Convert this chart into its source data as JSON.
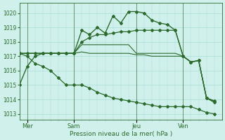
{
  "bg_color": "#cff0eb",
  "grid_color": "#aaddd8",
  "line_color": "#2d6b2d",
  "marker_color": "#2d6b2d",
  "xlabel": "Pression niveau de la mer( hPa )",
  "day_labels": [
    "Mer",
    "Sam",
    "Jeu",
    "Ven"
  ],
  "day_positions": [
    1,
    7,
    15,
    21
  ],
  "ylim": [
    1012.6,
    1020.7
  ],
  "yticks": [
    1013,
    1014,
    1015,
    1016,
    1017,
    1018,
    1019,
    1020
  ],
  "xlim": [
    0,
    26
  ],
  "series": [
    {
      "x": [
        0,
        1,
        2,
        3,
        4,
        5,
        6,
        7,
        8,
        9,
        10,
        11,
        12,
        13,
        14,
        15,
        16,
        17,
        18,
        19,
        20,
        21,
        22,
        23,
        24,
        25
      ],
      "y": [
        1015.0,
        1016.3,
        1017.0,
        1017.2,
        1017.2,
        1017.2,
        1017.2,
        1017.2,
        1018.8,
        1018.5,
        1019.0,
        1018.6,
        1019.8,
        1019.3,
        1020.1,
        1020.1,
        1020.0,
        1019.5,
        1019.3,
        1019.2,
        1018.8,
        1017.0,
        1016.6,
        1016.7,
        1014.1,
        1013.8
      ],
      "marker": true,
      "lw": 1.0
    },
    {
      "x": [
        0,
        1,
        2,
        3,
        4,
        5,
        6,
        7,
        8,
        9,
        10,
        11,
        12,
        13,
        14,
        15,
        16,
        17,
        18,
        19,
        20,
        21,
        22,
        23,
        24,
        25
      ],
      "y": [
        1017.2,
        1017.2,
        1017.2,
        1017.2,
        1017.2,
        1017.2,
        1017.2,
        1017.2,
        1018.0,
        1018.3,
        1018.5,
        1018.5,
        1018.6,
        1018.7,
        1018.7,
        1018.8,
        1018.8,
        1018.8,
        1018.8,
        1018.8,
        1018.8,
        1017.0,
        1016.6,
        1016.7,
        1014.1,
        1013.9
      ],
      "marker": true,
      "lw": 0.9
    },
    {
      "x": [
        0,
        1,
        2,
        3,
        4,
        5,
        6,
        7,
        8,
        9,
        10,
        11,
        12,
        13,
        14,
        15,
        16,
        17,
        18,
        19,
        20,
        21,
        22,
        23,
        24,
        25
      ],
      "y": [
        1017.2,
        1017.2,
        1017.2,
        1017.2,
        1017.2,
        1017.2,
        1017.2,
        1017.2,
        1017.8,
        1017.8,
        1017.8,
        1017.8,
        1017.8,
        1017.8,
        1017.8,
        1017.2,
        1017.2,
        1017.2,
        1017.2,
        1017.2,
        1017.2,
        1017.0,
        1016.6,
        1016.7,
        1014.1,
        1013.9
      ],
      "marker": false,
      "lw": 0.8
    },
    {
      "x": [
        0,
        1,
        2,
        3,
        4,
        5,
        6,
        7,
        8,
        9,
        10,
        11,
        12,
        13,
        14,
        15,
        16,
        17,
        18,
        19,
        20,
        21,
        22,
        23,
        24,
        25
      ],
      "y": [
        1017.2,
        1017.2,
        1017.2,
        1017.2,
        1017.2,
        1017.2,
        1017.2,
        1017.2,
        1017.3,
        1017.2,
        1017.2,
        1017.2,
        1017.2,
        1017.2,
        1017.2,
        1017.1,
        1017.1,
        1017.0,
        1017.0,
        1017.0,
        1017.0,
        1017.0,
        1016.6,
        1016.7,
        1014.1,
        1013.9
      ],
      "marker": false,
      "lw": 0.8
    },
    {
      "x": [
        0,
        1,
        2,
        3,
        4,
        5,
        6,
        7,
        8,
        9,
        10,
        11,
        12,
        13,
        14,
        15,
        16,
        17,
        18,
        19,
        20,
        21,
        22,
        23,
        24,
        25
      ],
      "y": [
        1017.2,
        1017.0,
        1016.5,
        1016.3,
        1016.0,
        1015.5,
        1015.0,
        1015.0,
        1015.0,
        1014.8,
        1014.5,
        1014.3,
        1014.1,
        1014.0,
        1013.9,
        1013.8,
        1013.7,
        1013.6,
        1013.5,
        1013.5,
        1013.5,
        1013.5,
        1013.5,
        1013.3,
        1013.1,
        1013.0
      ],
      "marker": true,
      "lw": 0.9
    }
  ]
}
